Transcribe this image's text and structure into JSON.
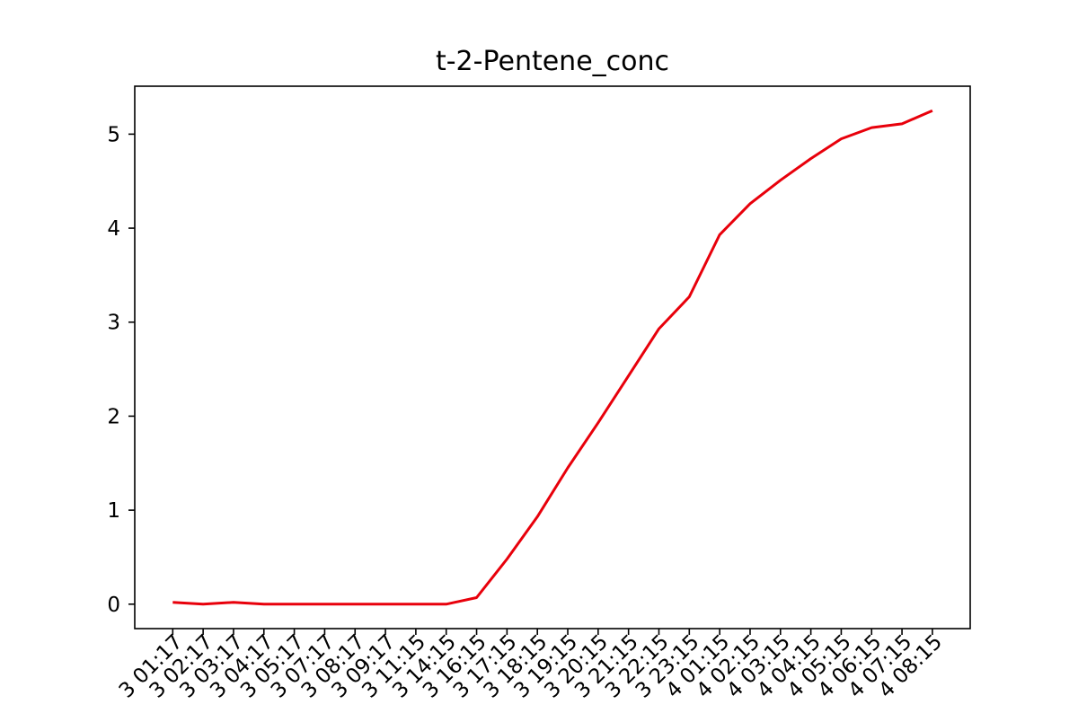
{
  "chart_data": {
    "type": "line",
    "title": "t-2-Pentene_conc",
    "xlabel": "",
    "ylabel": "",
    "x": [
      "3 01:17",
      "3 02:17",
      "3 03:17",
      "3 04:17",
      "3 05:17",
      "3 07:17",
      "3 08:17",
      "3 09:17",
      "3 11:15",
      "3 14:15",
      "3 16:15",
      "3 17:15",
      "3 18:15",
      "3 19:15",
      "3 20:15",
      "3 21:15",
      "3 22:15",
      "3 23:15",
      "4 01:15",
      "4 02:15",
      "4 03:15",
      "4 04:15",
      "4 05:15",
      "4 06:15",
      "4 07:15",
      "4 08:15"
    ],
    "series": [
      {
        "color": "#e8000b",
        "values": [
          0.02,
          0.0,
          0.02,
          0.0,
          0.0,
          0.0,
          0.0,
          0.0,
          0.0,
          0.0,
          0.07,
          0.48,
          0.93,
          1.45,
          1.93,
          2.43,
          2.93,
          3.27,
          3.93,
          4.26,
          4.51,
          4.74,
          4.95,
          5.07,
          5.11,
          5.25
        ]
      }
    ],
    "yticks": [
      0,
      1,
      2,
      3,
      4,
      5
    ],
    "ylim": [
      -0.26,
      5.51
    ],
    "grid": false,
    "legend": "none"
  }
}
